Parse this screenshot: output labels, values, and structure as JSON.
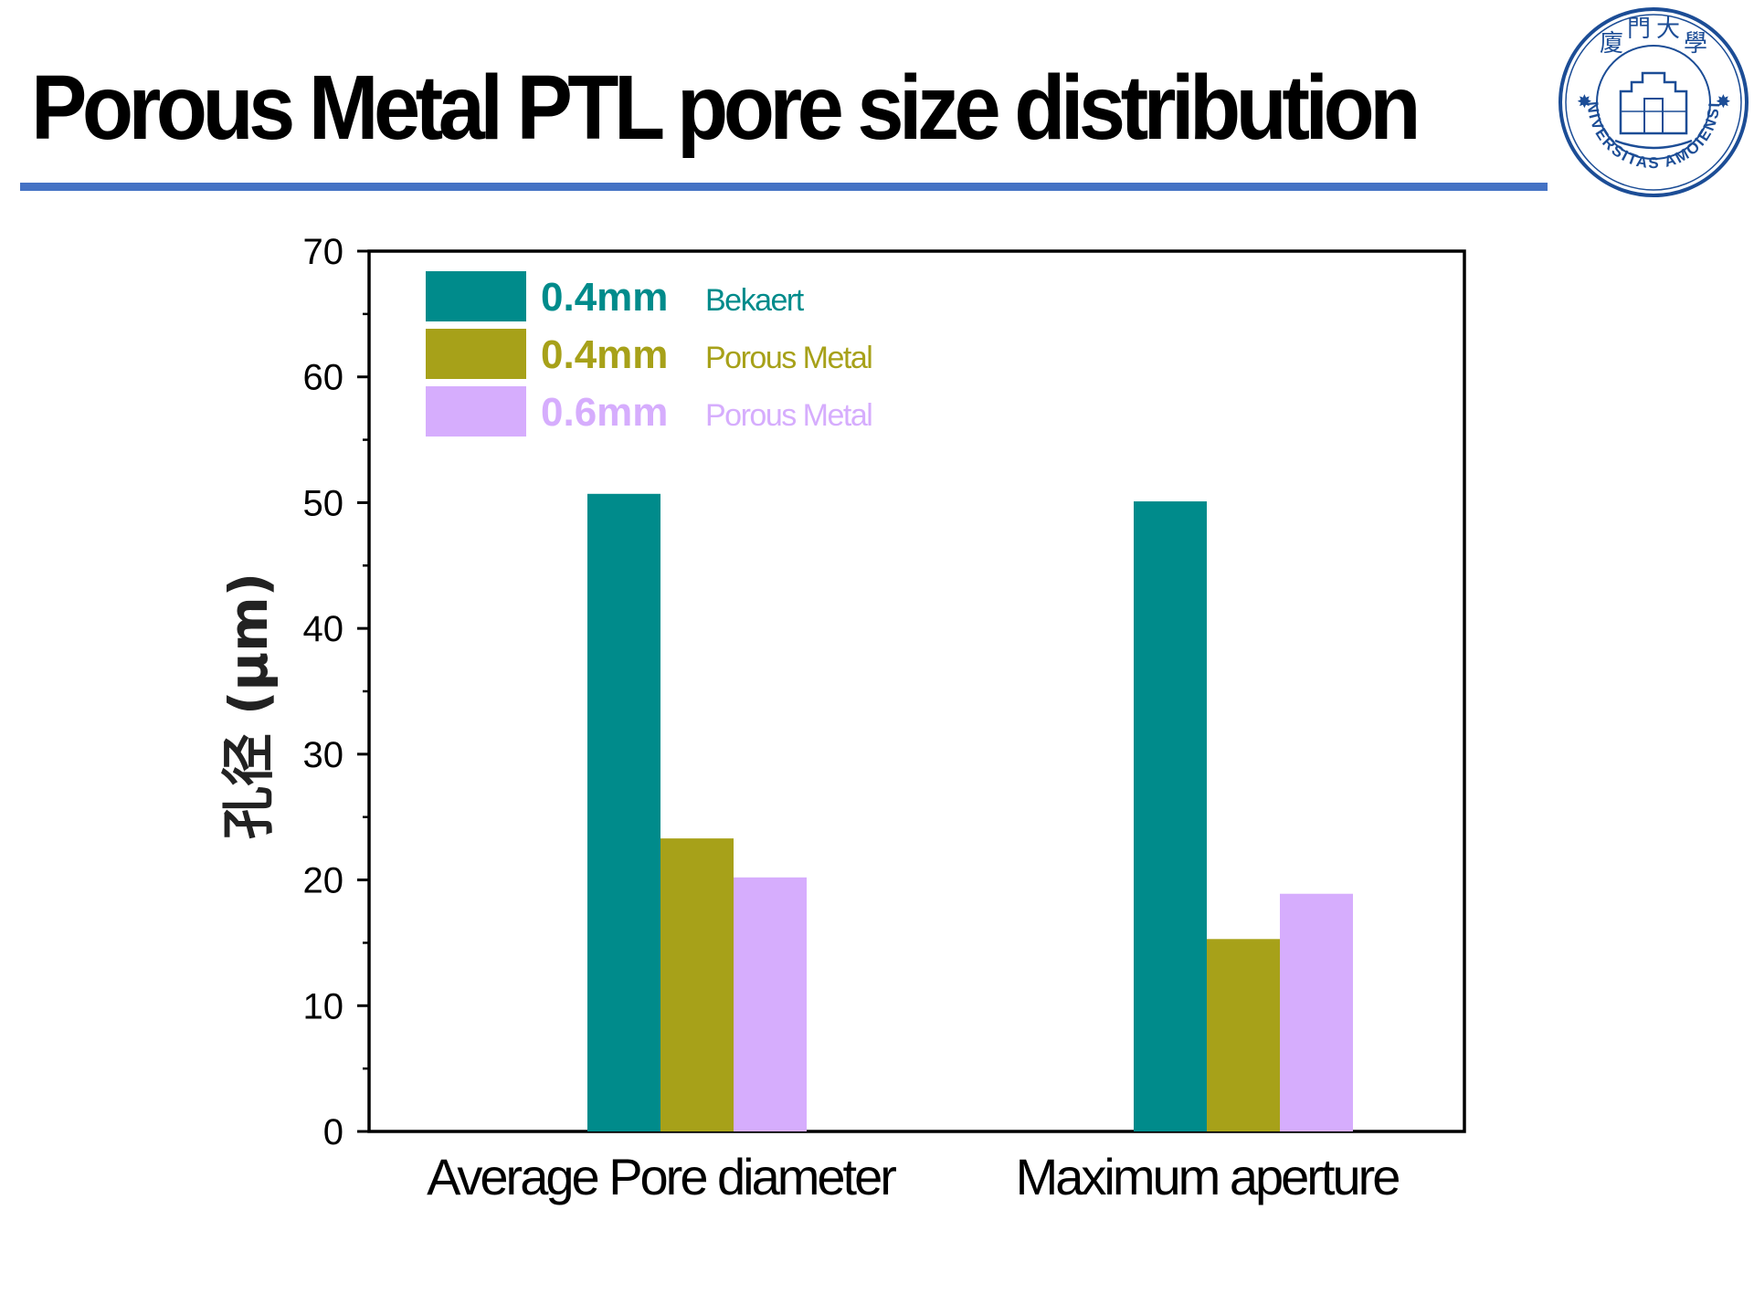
{
  "slide": {
    "title": "Porous Metal  PTL  pore size distribution",
    "logo_text": "UNIVERSITAS AMOIENSIS",
    "logo_cjk": [
      "廈",
      "門",
      "大",
      "學"
    ],
    "accent_color": "#4472c4"
  },
  "chart_data": {
    "type": "bar",
    "categories": [
      "Average Pore diameter",
      "Maximum aperture"
    ],
    "series": [
      {
        "size": "0.4mm",
        "name": "Bekaert",
        "values": [
          50.7,
          50.1
        ],
        "color": "#008b8b"
      },
      {
        "size": "0.4mm",
        "name": "Porous Metal",
        "values": [
          23.3,
          15.3
        ],
        "color": "#a7a119"
      },
      {
        "size": "0.6mm",
        "name": "Porous Metal",
        "values": [
          20.2,
          18.9
        ],
        "color": "#d6adfd"
      }
    ],
    "ylabel": "孔径 (μm)",
    "ylim": [
      0,
      70
    ],
    "yticks": [
      0,
      10,
      20,
      30,
      40,
      50,
      60,
      70
    ],
    "legend_position": "top-left"
  }
}
